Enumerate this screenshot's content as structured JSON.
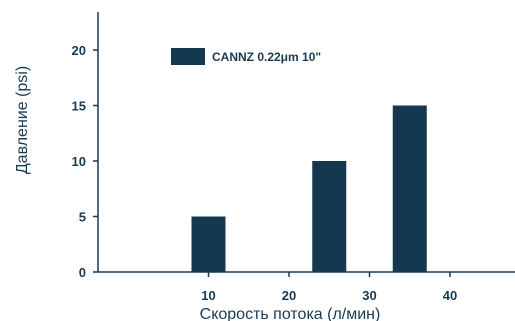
{
  "chart_data": {
    "type": "bar",
    "xlabel": "Скорость потока (л/мин)",
    "ylabel": "Давление (psi)",
    "x_ticks": [
      10,
      20,
      30,
      40
    ],
    "y_ticks": [
      0,
      5,
      10,
      15,
      20
    ],
    "xlim": [
      0,
      50
    ],
    "ylim": [
      0,
      22
    ],
    "grid": false,
    "legend_position": "top-left",
    "series": [
      {
        "name": "CANNZ 0.22μm 10\"",
        "color": "#14384f",
        "x": [
          10,
          25,
          35
        ],
        "values": [
          5,
          10,
          15
        ]
      }
    ]
  }
}
